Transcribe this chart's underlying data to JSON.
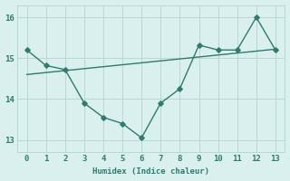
{
  "x": [
    0,
    1,
    2,
    3,
    4,
    5,
    6,
    7,
    8,
    9,
    10,
    11,
    12,
    13
  ],
  "y_main": [
    15.2,
    14.82,
    14.72,
    13.9,
    13.55,
    13.4,
    13.05,
    13.9,
    14.25,
    15.32,
    15.2,
    15.2,
    16.0,
    15.2
  ],
  "trend_x": [
    0,
    13
  ],
  "trend_y": [
    14.6,
    15.22
  ],
  "line_color": "#2a7d6f",
  "bg_color": "#daf0ee",
  "grid_color": "#b8d8d4",
  "xlabel": "Humidex (Indice chaleur)",
  "ylim": [
    12.7,
    16.3
  ],
  "xlim": [
    -0.5,
    13.5
  ],
  "yticks": [
    13,
    14,
    15,
    16
  ],
  "xticks": [
    0,
    1,
    2,
    3,
    4,
    5,
    6,
    7,
    8,
    9,
    10,
    11,
    12,
    13
  ],
  "marker_size": 2.8,
  "line_width": 1.0
}
